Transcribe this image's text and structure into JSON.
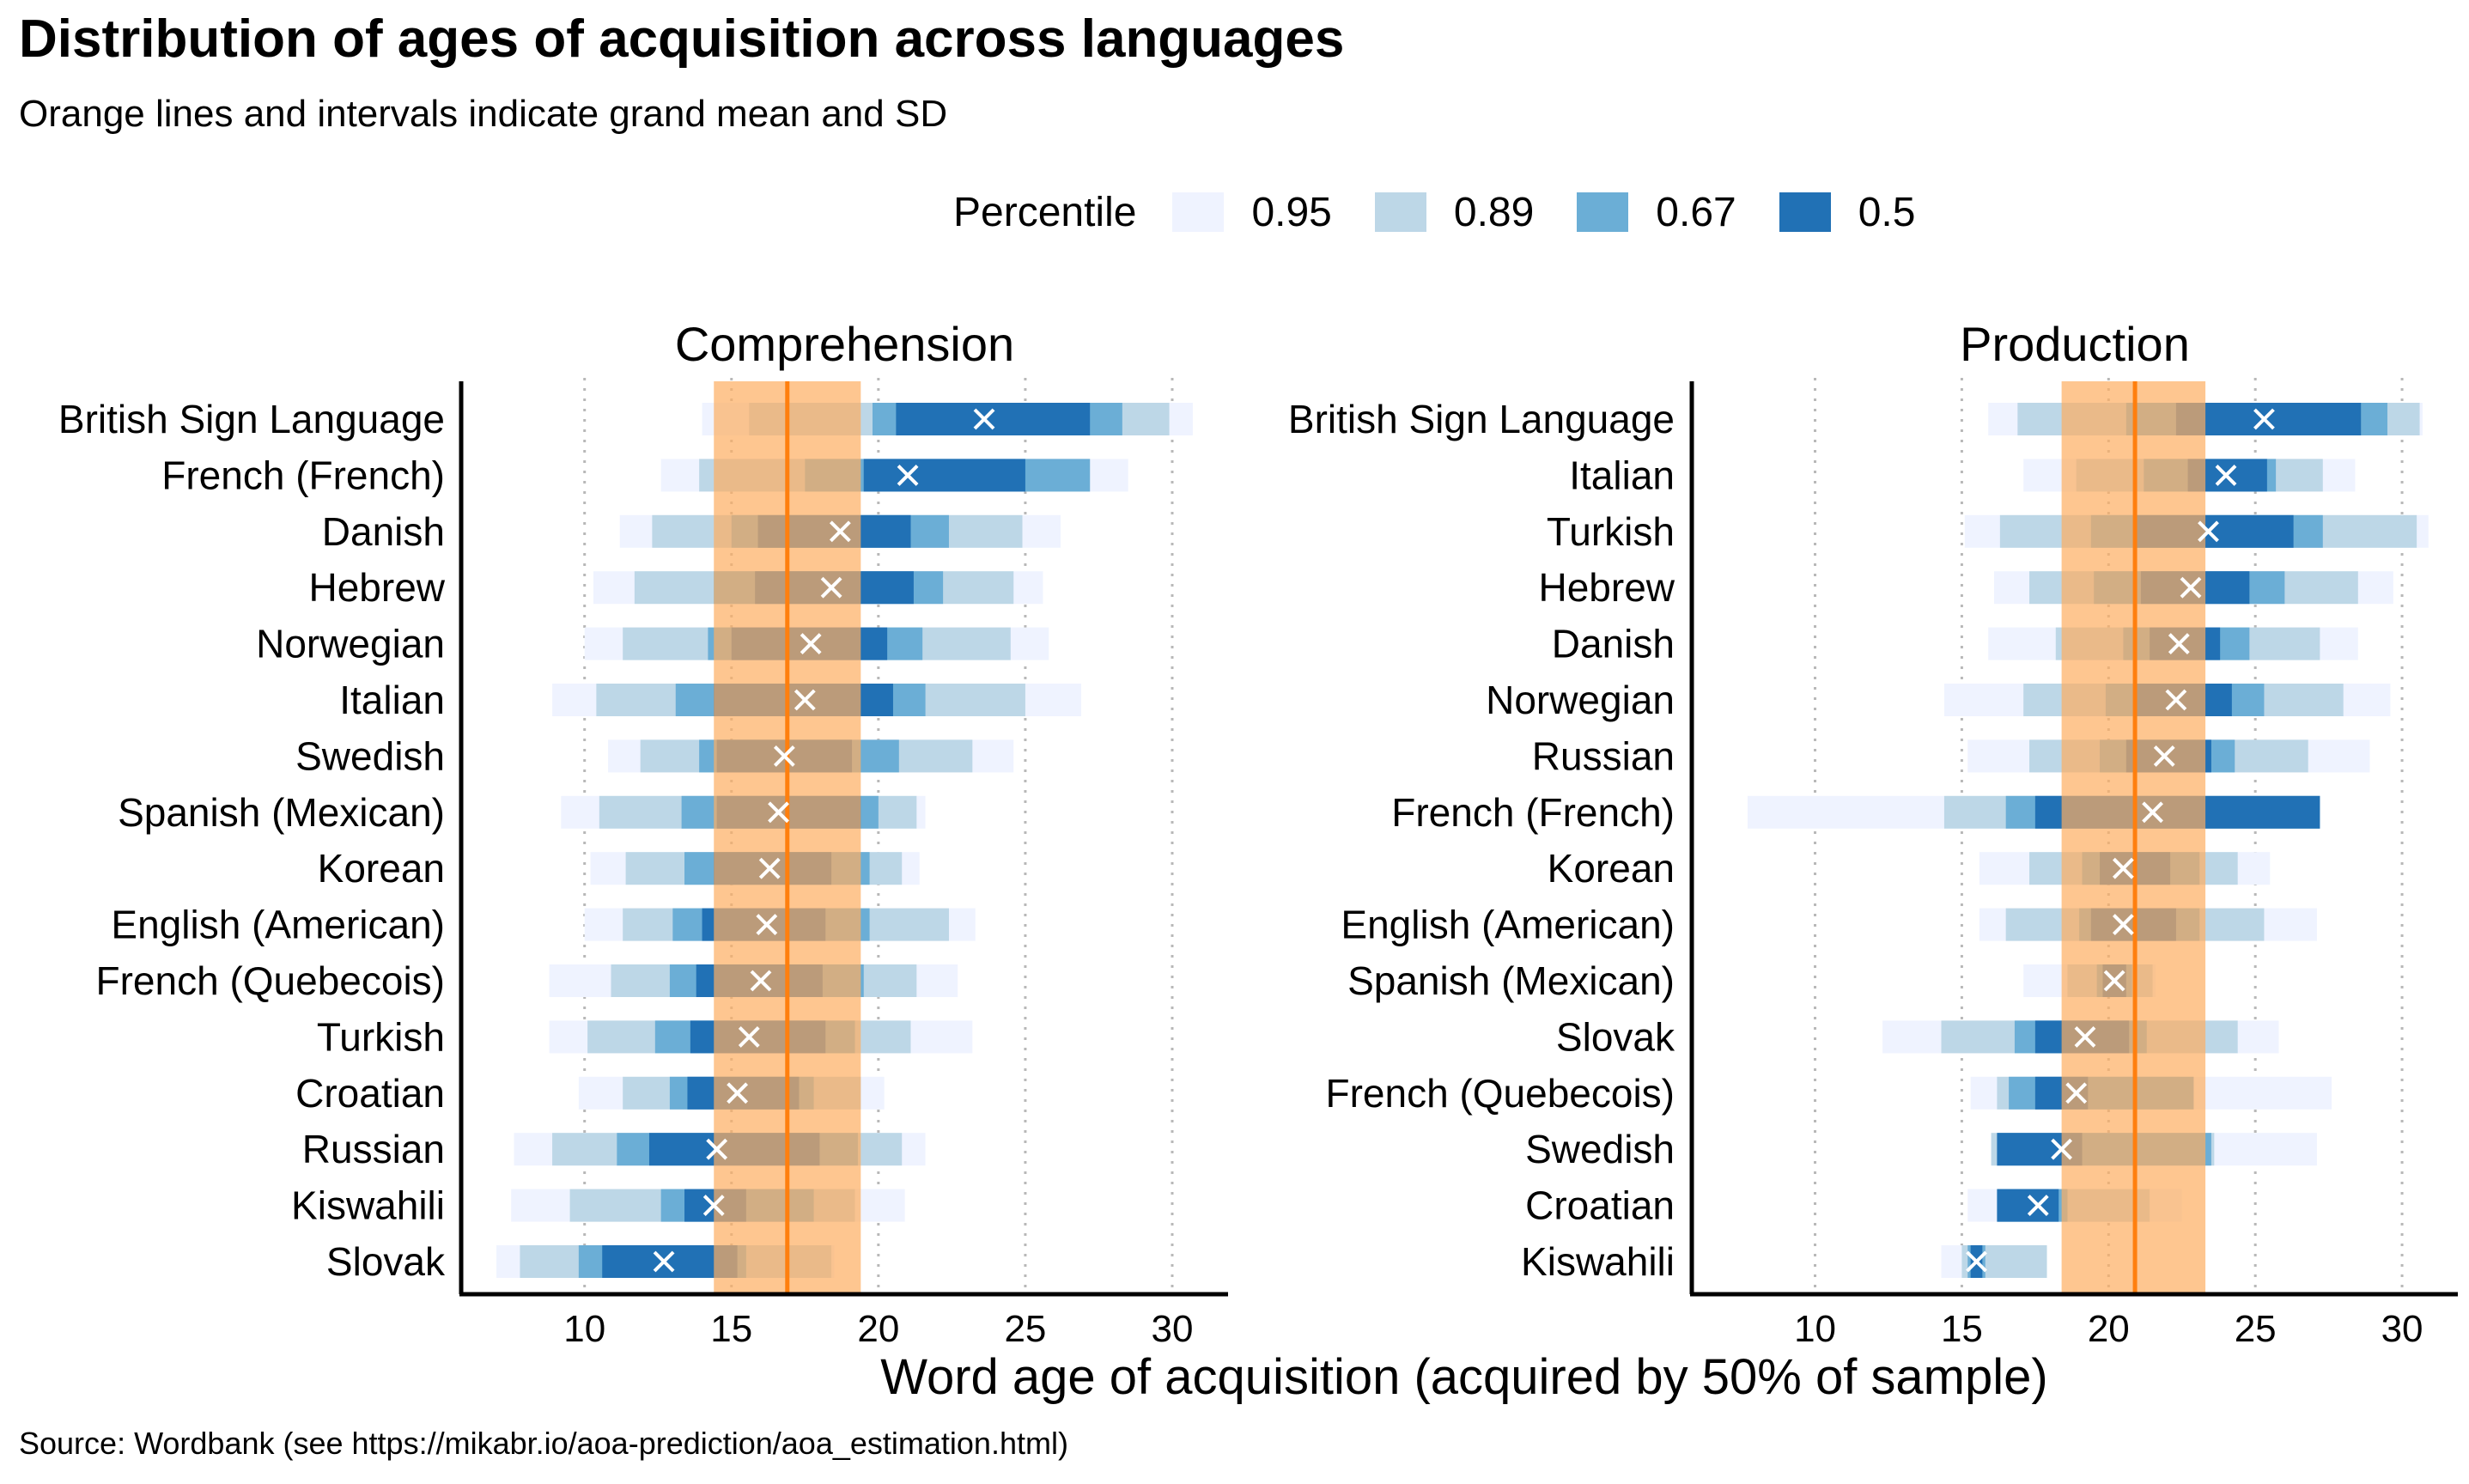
{
  "title": "Distribution of ages of acquisition across languages",
  "subtitle": "Orange lines and intervals indicate grand mean and SD",
  "caption": "Source: Wordbank (see https://mikabr.io/aoa-prediction/aoa_estimation.html)",
  "colors": {
    "p95": "#eff3ff",
    "p89": "#bdd7e7",
    "p67": "#6baed6",
    "p50": "#2171b5",
    "mean_line": "#ff7f0e",
    "sd_band": "#fdae61"
  },
  "legend": {
    "title": "Percentile",
    "items": [
      {
        "label": "0.95",
        "color": "#eff3ff"
      },
      {
        "label": "0.89",
        "color": "#bdd7e7"
      },
      {
        "label": "0.67",
        "color": "#6baed6"
      },
      {
        "label": "0.5",
        "color": "#2171b5"
      }
    ]
  },
  "chart_data": {
    "type": "interval",
    "xlabel": "Word age of acquisition (acquired by 50% of sample)",
    "xlim": [
      5.8,
      31.9
    ],
    "xticks": [
      10,
      15,
      20,
      25,
      30
    ],
    "grid": "vertical dotted",
    "marker": "median (white cross)",
    "panels": [
      {
        "name": "Comprehension",
        "grand_mean": 16.9,
        "sd_interval": [
          14.4,
          19.4
        ],
        "rows": [
          {
            "language": "British Sign Language",
            "median": 23.6,
            "p95": [
              14.0,
              30.7
            ],
            "p89": [
              15.6,
              29.9
            ],
            "p67": [
              19.8,
              28.3
            ],
            "p50": [
              20.6,
              27.2
            ]
          },
          {
            "language": "French (French)",
            "median": 21.0,
            "p95": [
              12.6,
              28.5
            ],
            "p89": [
              13.9,
              27.2
            ],
            "p67": [
              17.5,
              27.2
            ],
            "p50": [
              19.5,
              25.0
            ]
          },
          {
            "language": "Danish",
            "median": 18.7,
            "p95": [
              11.2,
              26.2
            ],
            "p89": [
              12.3,
              24.9
            ],
            "p67": [
              15.0,
              22.4
            ],
            "p50": [
              15.9,
              21.1
            ]
          },
          {
            "language": "Hebrew",
            "median": 18.4,
            "p95": [
              10.3,
              25.6
            ],
            "p89": [
              11.7,
              24.6
            ],
            "p67": [
              14.4,
              22.2
            ],
            "p50": [
              15.8,
              21.2
            ]
          },
          {
            "language": "Norwegian",
            "median": 17.7,
            "p95": [
              10.0,
              25.8
            ],
            "p89": [
              11.3,
              24.5
            ],
            "p67": [
              14.2,
              21.5
            ],
            "p50": [
              15.0,
              20.3
            ]
          },
          {
            "language": "Italian",
            "median": 17.5,
            "p95": [
              8.9,
              26.9
            ],
            "p89": [
              10.4,
              25.0
            ],
            "p67": [
              13.1,
              21.6
            ],
            "p50": [
              14.4,
              20.5
            ]
          },
          {
            "language": "Swedish",
            "median": 16.8,
            "p95": [
              10.8,
              24.6
            ],
            "p89": [
              11.9,
              23.2
            ],
            "p67": [
              13.9,
              20.7
            ],
            "p50": [
              14.5,
              19.1
            ]
          },
          {
            "language": "Spanish (Mexican)",
            "median": 16.6,
            "p95": [
              9.2,
              21.6
            ],
            "p89": [
              10.5,
              21.3
            ],
            "p67": [
              13.3,
              20.0
            ],
            "p50": [
              14.5,
              19.4
            ]
          },
          {
            "language": "Korean",
            "median": 16.3,
            "p95": [
              10.2,
              21.4
            ],
            "p89": [
              11.4,
              20.8
            ],
            "p67": [
              13.4,
              19.7
            ],
            "p50": [
              14.4,
              18.4
            ]
          },
          {
            "language": "English (American)",
            "median": 16.2,
            "p95": [
              10.0,
              23.3
            ],
            "p89": [
              11.3,
              22.4
            ],
            "p67": [
              13.0,
              19.7
            ],
            "p50": [
              14.0,
              18.2
            ]
          },
          {
            "language": "French (Quebecois)",
            "median": 16.0,
            "p95": [
              8.8,
              22.7
            ],
            "p89": [
              10.9,
              21.3
            ],
            "p67": [
              12.9,
              19.5
            ],
            "p50": [
              13.8,
              18.1
            ]
          },
          {
            "language": "Turkish",
            "median": 15.6,
            "p95": [
              8.8,
              23.2
            ],
            "p89": [
              10.1,
              21.1
            ],
            "p67": [
              12.4,
              19.2
            ],
            "p50": [
              13.6,
              18.2
            ]
          },
          {
            "language": "Croatian",
            "median": 15.2,
            "p95": [
              9.8,
              20.2
            ],
            "p89": [
              11.3,
              19.4
            ],
            "p67": [
              12.9,
              17.8
            ],
            "p50": [
              13.5,
              17.3
            ]
          },
          {
            "language": "Russian",
            "median": 14.5,
            "p95": [
              7.6,
              21.6
            ],
            "p89": [
              8.9,
              20.8
            ],
            "p67": [
              11.1,
              19.3
            ],
            "p50": [
              12.2,
              18.0
            ]
          },
          {
            "language": "Kiswahili",
            "median": 14.4,
            "p95": [
              7.5,
              20.9
            ],
            "p89": [
              9.5,
              19.2
            ],
            "p67": [
              12.6,
              17.8
            ],
            "p50": [
              13.4,
              15.5
            ]
          },
          {
            "language": "Slovak",
            "median": 12.7,
            "p95": [
              7.0,
              18.5
            ],
            "p89": [
              7.8,
              18.4
            ],
            "p67": [
              9.8,
              15.5
            ],
            "p50": [
              10.6,
              15.2
            ]
          }
        ]
      },
      {
        "name": "Production",
        "grand_mean": 20.9,
        "sd_interval": [
          18.4,
          23.3
        ],
        "rows": [
          {
            "language": "British Sign Language",
            "median": 25.3,
            "p95": [
              15.9,
              30.7
            ],
            "p89": [
              16.9,
              30.6
            ],
            "p67": [
              20.6,
              29.5
            ],
            "p50": [
              22.3,
              28.6
            ]
          },
          {
            "language": "Italian",
            "median": 24.0,
            "p95": [
              17.1,
              28.4
            ],
            "p89": [
              18.9,
              27.3
            ],
            "p67": [
              21.2,
              25.7
            ],
            "p50": [
              22.7,
              25.4
            ]
          },
          {
            "language": "Turkish",
            "median": 23.4,
            "p95": [
              15.1,
              30.9
            ],
            "p89": [
              16.3,
              30.5
            ],
            "p67": [
              19.4,
              27.3
            ],
            "p50": [
              20.9,
              26.3
            ]
          },
          {
            "language": "Hebrew",
            "median": 22.8,
            "p95": [
              16.1,
              29.7
            ],
            "p89": [
              17.3,
              28.5
            ],
            "p67": [
              19.5,
              26.0
            ],
            "p50": [
              21.1,
              24.8
            ]
          },
          {
            "language": "Danish",
            "median": 22.4,
            "p95": [
              15.9,
              28.5
            ],
            "p89": [
              18.2,
              27.2
            ],
            "p67": [
              20.5,
              24.8
            ],
            "p50": [
              21.4,
              23.8
            ]
          },
          {
            "language": "Norwegian",
            "median": 22.3,
            "p95": [
              14.4,
              29.6
            ],
            "p89": [
              17.1,
              28.0
            ],
            "p67": [
              19.9,
              25.3
            ],
            "p50": [
              20.9,
              24.2
            ]
          },
          {
            "language": "Russian",
            "median": 21.9,
            "p95": [
              15.2,
              28.9
            ],
            "p89": [
              17.3,
              26.8
            ],
            "p67": [
              19.7,
              24.3
            ],
            "p50": [
              20.6,
              23.5
            ]
          },
          {
            "language": "French (French)",
            "median": 21.5,
            "p95": [
              7.7,
              23.3
            ],
            "p89": [
              14.4,
              23.3
            ],
            "p67": [
              16.5,
              27.2
            ],
            "p50": [
              17.5,
              27.2
            ]
          },
          {
            "language": "Korean",
            "median": 20.5,
            "p95": [
              15.6,
              25.5
            ],
            "p89": [
              17.3,
              24.4
            ],
            "p67": [
              19.1,
              23.1
            ],
            "p50": [
              19.7,
              22.1
            ]
          },
          {
            "language": "English (American)",
            "median": 20.5,
            "p95": [
              15.6,
              27.1
            ],
            "p89": [
              16.5,
              25.3
            ],
            "p67": [
              19.0,
              23.1
            ],
            "p50": [
              19.4,
              22.3
            ]
          },
          {
            "language": "Spanish (Mexican)",
            "median": 20.2,
            "p95": [
              17.1,
              21.6
            ],
            "p89": [
              18.6,
              21.5
            ],
            "p67": [
              19.6,
              20.8
            ],
            "p50": [
              19.8,
              20.6
            ]
          },
          {
            "language": "Slovak",
            "median": 19.2,
            "p95": [
              12.3,
              25.8
            ],
            "p89": [
              14.3,
              24.4
            ],
            "p67": [
              16.8,
              21.3
            ],
            "p50": [
              17.5,
              20.7
            ]
          },
          {
            "language": "French (Quebecois)",
            "median": 18.9,
            "p95": [
              15.3,
              27.6
            ],
            "p89": [
              16.2,
              22.4
            ],
            "p67": [
              16.6,
              22.9
            ],
            "p50": [
              17.5,
              19.3
            ]
          },
          {
            "language": "Swedish",
            "median": 18.4,
            "p95": [
              16.0,
              27.1
            ],
            "p89": [
              16.0,
              23.6
            ],
            "p67": [
              16.2,
              23.5
            ],
            "p50": [
              16.2,
              19.1
            ]
          },
          {
            "language": "Croatian",
            "median": 17.6,
            "p95": [
              15.2,
              22.5
            ],
            "p89": [
              16.2,
              21.4
            ],
            "p67": [
              16.2,
              18.6
            ],
            "p50": [
              16.2,
              18.3
            ]
          },
          {
            "language": "Kiswahili",
            "median": 15.5,
            "p95": [
              14.3,
              17.9
            ],
            "p89": [
              15.0,
              17.9
            ],
            "p67": [
              15.2,
              15.8
            ],
            "p50": [
              15.3,
              15.7
            ]
          }
        ]
      }
    ]
  }
}
